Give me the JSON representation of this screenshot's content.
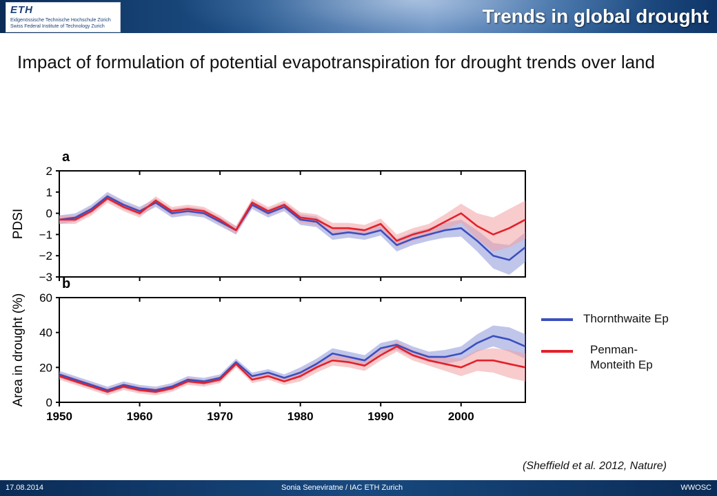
{
  "header": {
    "logo_mark": "ETH",
    "logo_line1": "Eidgenössische Technische Hochschule Zürich",
    "logo_line2": "Swiss Federal Institute of Technology Zurich",
    "slide_title": "Trends in global drought"
  },
  "heading": "Impact of formulation of potential evapotranspiration for drought trends over land",
  "legend": {
    "thornthwaite": "Thornthwaite Ep",
    "penman": "Penman- Monteith Ep"
  },
  "citation": "(Sheffield et al. 2012, Nature)",
  "footer": {
    "date": "17.08.2014",
    "author": "Sonia Seneviratne / IAC ETH Zurich",
    "event": "WWOSC"
  },
  "colors": {
    "thornthwaite": "#3b4fbf",
    "penman": "#e3202a",
    "thornthwaite_band": "#8d96d8",
    "penman_band": "#f3a0a3"
  },
  "chart_data": [
    {
      "panel": "a",
      "type": "line",
      "ylabel": "PDSI",
      "xlim": [
        1950,
        2008
      ],
      "ylim": [
        -3,
        2
      ],
      "yticks": [
        -3,
        -2,
        -1,
        0,
        1,
        2
      ],
      "xticks": [
        1950,
        1960,
        1970,
        1980,
        1990,
        2000
      ],
      "x": [
        1950,
        1952,
        1954,
        1956,
        1958,
        1960,
        1962,
        1964,
        1966,
        1968,
        1970,
        1972,
        1974,
        1976,
        1978,
        1980,
        1982,
        1984,
        1986,
        1988,
        1990,
        1992,
        1994,
        1996,
        1998,
        2000,
        2002,
        2004,
        2006,
        2008
      ],
      "series": [
        {
          "name": "Thornthwaite Ep",
          "values": [
            -0.3,
            -0.2,
            0.2,
            0.8,
            0.4,
            0.1,
            0.5,
            0.0,
            0.1,
            0.0,
            -0.4,
            -0.8,
            0.4,
            0.0,
            0.3,
            -0.3,
            -0.4,
            -1.0,
            -0.9,
            -1.0,
            -0.8,
            -1.5,
            -1.2,
            -1.0,
            -0.8,
            -0.7,
            -1.3,
            -2.0,
            -2.2,
            -1.6
          ],
          "band_halfwidth": [
            0.2,
            0.2,
            0.2,
            0.2,
            0.2,
            0.2,
            0.2,
            0.2,
            0.2,
            0.2,
            0.2,
            0.2,
            0.2,
            0.2,
            0.2,
            0.25,
            0.25,
            0.25,
            0.25,
            0.25,
            0.25,
            0.3,
            0.3,
            0.3,
            0.35,
            0.4,
            0.5,
            0.6,
            0.7,
            0.7
          ]
        },
        {
          "name": "Penman-Monteith Ep",
          "values": [
            -0.3,
            -0.3,
            0.1,
            0.7,
            0.3,
            0.0,
            0.6,
            0.1,
            0.2,
            0.1,
            -0.3,
            -0.8,
            0.5,
            0.1,
            0.4,
            -0.2,
            -0.3,
            -0.7,
            -0.7,
            -0.8,
            -0.5,
            -1.3,
            -1.0,
            -0.8,
            -0.4,
            0.0,
            -0.6,
            -1.0,
            -0.7,
            -0.3
          ],
          "band_halfwidth": [
            0.2,
            0.2,
            0.2,
            0.2,
            0.2,
            0.2,
            0.2,
            0.2,
            0.2,
            0.2,
            0.2,
            0.2,
            0.2,
            0.2,
            0.2,
            0.25,
            0.25,
            0.25,
            0.25,
            0.25,
            0.25,
            0.3,
            0.3,
            0.3,
            0.35,
            0.45,
            0.6,
            0.8,
            0.9,
            0.9
          ]
        }
      ]
    },
    {
      "panel": "b",
      "type": "line",
      "ylabel": "Area in drought (%)",
      "xlim": [
        1950,
        2008
      ],
      "ylim": [
        0,
        60
      ],
      "yticks": [
        0,
        20,
        40,
        60
      ],
      "xticks": [
        1950,
        1960,
        1970,
        1980,
        1990,
        2000
      ],
      "x": [
        1950,
        1952,
        1954,
        1956,
        1958,
        1960,
        1962,
        1964,
        1966,
        1968,
        1970,
        1972,
        1974,
        1976,
        1978,
        1980,
        1982,
        1984,
        1986,
        1988,
        1990,
        1992,
        1994,
        1996,
        1998,
        2000,
        2002,
        2004,
        2006,
        2008
      ],
      "series": [
        {
          "name": "Thornthwaite Ep",
          "values": [
            16,
            13,
            10,
            7,
            10,
            8,
            7,
            9,
            13,
            12,
            14,
            23,
            15,
            17,
            14,
            17,
            22,
            28,
            26,
            24,
            31,
            33,
            29,
            26,
            26,
            28,
            34,
            38,
            36,
            32
          ],
          "band_halfwidth": [
            2,
            2,
            2,
            2,
            2,
            2,
            2,
            2,
            2,
            2,
            2,
            2,
            2,
            2,
            2,
            3,
            3,
            3,
            3,
            3,
            3,
            3,
            3,
            3,
            4,
            4,
            5,
            6,
            7,
            7
          ]
        },
        {
          "name": "Penman-Monteith Ep",
          "values": [
            15,
            12,
            9,
            6,
            9,
            7,
            6,
            8,
            12,
            11,
            13,
            22,
            13,
            15,
            12,
            15,
            20,
            24,
            23,
            21,
            27,
            32,
            27,
            24,
            22,
            20,
            24,
            24,
            22,
            20
          ],
          "band_halfwidth": [
            2,
            2,
            2,
            2,
            2,
            2,
            2,
            2,
            2,
            2,
            2,
            2,
            2,
            2,
            2,
            3,
            3,
            3,
            3,
            3,
            3,
            3,
            3,
            3,
            4,
            5,
            6,
            7,
            8,
            8
          ]
        }
      ]
    }
  ]
}
